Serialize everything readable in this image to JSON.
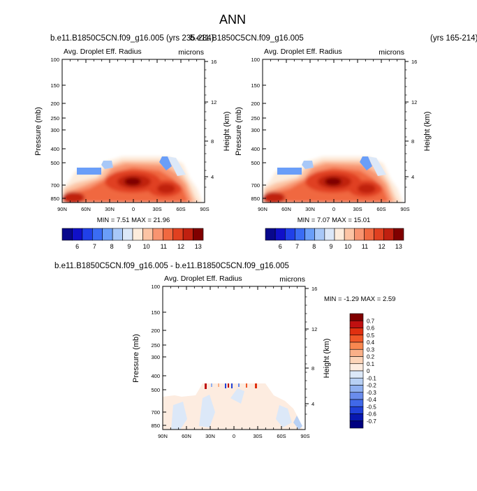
{
  "page": {
    "title": "ANN",
    "case_label_left": "b.e11.B1850C5CN.f09_g16.005 (yrs 235-284)",
    "case_label_right": "b.e11.B1850C5CN.f09_g16.005",
    "case_years_right": "(yrs 165-214)",
    "diff_label": "b.e11.B1850C5CN.f09_g16.005 - b.e11.B1850C5CN.f09_g16.005"
  },
  "chart_data": [
    {
      "type": "heatmap",
      "title": "Avg. Droplet Eff. Radius",
      "units": "microns",
      "ylabel": "Pressure (mb)",
      "ylabel_right": "Height (km)",
      "x_ticks": [
        "90N",
        "60N",
        "30N",
        "0",
        "30S",
        "60S",
        "90S"
      ],
      "y_ticks": [
        "100",
        "150",
        "200",
        "250",
        "300",
        "400",
        "500",
        "700",
        "850"
      ],
      "height_ticks": [
        "16",
        "12",
        "8",
        "4"
      ],
      "min_max": "MIN =  7.51  MAX =  21.96",
      "colorbar_labels": [
        "6",
        "7",
        "8",
        "9",
        "10",
        "11",
        "12",
        "13"
      ]
    },
    {
      "type": "heatmap",
      "title": "Avg. Droplet Eff. Radius",
      "units": "microns",
      "ylabel": "Pressure (mb)",
      "ylabel_right": "Height (km)",
      "x_ticks": [
        "90N",
        "60N",
        "30N",
        "0",
        "30S",
        "60S",
        "90S"
      ],
      "y_ticks": [
        "100",
        "150",
        "200",
        "250",
        "300",
        "400",
        "500",
        "700",
        "850"
      ],
      "height_ticks": [
        "16",
        "12",
        "8",
        "4"
      ],
      "min_max": "MIN =  7.07  MAX =  15.01",
      "colorbar_labels": [
        "6",
        "7",
        "8",
        "9",
        "10",
        "11",
        "12",
        "13"
      ]
    },
    {
      "type": "heatmap",
      "title": "Avg. Droplet Eff. Radius",
      "units": "microns",
      "ylabel": "Pressure (mb)",
      "ylabel_right": "Height (km)",
      "x_ticks": [
        "90N",
        "60N",
        "30N",
        "0",
        "30S",
        "60S",
        "90S"
      ],
      "y_ticks": [
        "100",
        "150",
        "200",
        "250",
        "300",
        "400",
        "500",
        "700",
        "850"
      ],
      "height_ticks": [
        "16",
        "12",
        "8",
        "4"
      ],
      "min_max": "MIN = -1.29  MAX =   2.59",
      "colorbar_labels": [
        "0.7",
        "0.6",
        "0.5",
        "0.4",
        "0.3",
        "0.2",
        "0.1",
        "0",
        "-0.1",
        "-0.2",
        "-0.3",
        "-0.4",
        "-0.5",
        "-0.6",
        "-0.7"
      ]
    }
  ],
  "colors": {
    "seq": [
      "#08088c",
      "#1010c8",
      "#2040e8",
      "#3a6cf4",
      "#6a9ef8",
      "#a8c8f8",
      "#dce8f8",
      "#fdecdc",
      "#fcc4a4",
      "#f89470",
      "#f06840",
      "#e04020",
      "#c02010",
      "#800000"
    ],
    "diff": [
      "#800000",
      "#c01010",
      "#e03010",
      "#f05828",
      "#f88850",
      "#fab088",
      "#fcd4b8",
      "#fdece0",
      "#dce8f8",
      "#b8d0f4",
      "#90b0f0",
      "#6a8cec",
      "#4068e8",
      "#2040d8",
      "#0818b0",
      "#000080"
    ]
  }
}
